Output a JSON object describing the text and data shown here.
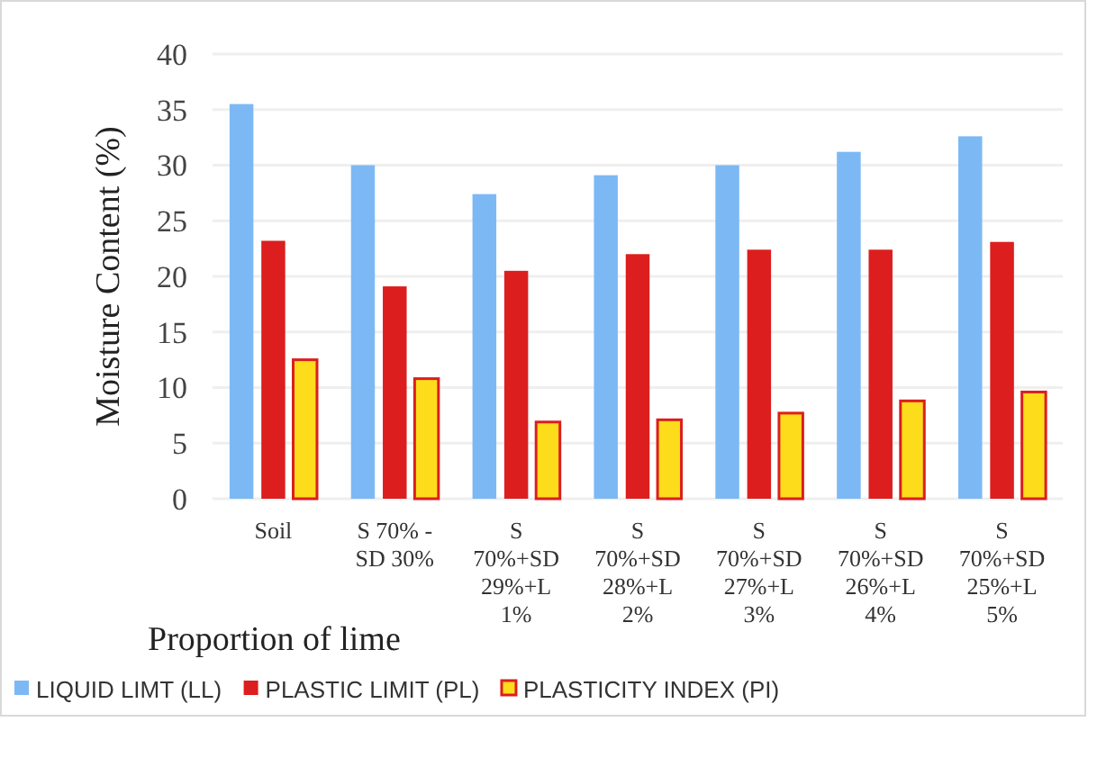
{
  "chart_data": {
    "type": "bar",
    "xlabel": "Proportion of lime",
    "ylabel": "Moisture Content (%)",
    "categories": [
      "Soil",
      "S 70% - SD 30%",
      "S 70%+SD 29%+L 1%",
      "S 70%+SD 28%+L 2%",
      "S 70%+SD 27%+L 3%",
      "S 70%+SD 26%+L 4%",
      "S 70%+SD 25%+L 5%"
    ],
    "series": [
      {
        "name": "LIQUID LIMT (LL)",
        "color": "#7cb9f4",
        "values": [
          35.5,
          30,
          27.4,
          29.1,
          30,
          31.2,
          32.6
        ]
      },
      {
        "name": "PLASTIC LIMIT (PL)",
        "color": "#dc1e1e",
        "values": [
          23.2,
          19.1,
          20.5,
          22,
          22.4,
          22.4,
          23.1
        ]
      },
      {
        "name": "PLASTICITY INDEX (PI)",
        "color": "#fddc1c",
        "values": [
          12.5,
          10.8,
          6.9,
          7.1,
          7.7,
          8.8,
          9.6
        ]
      }
    ],
    "ylim": [
      0,
      40
    ],
    "yticks": [
      0,
      5,
      10,
      15,
      20,
      25,
      30,
      35,
      40
    ],
    "grid": "y",
    "legend": "bottom"
  }
}
